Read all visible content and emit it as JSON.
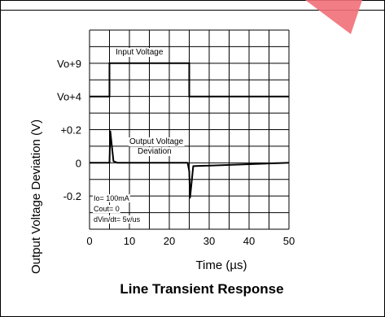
{
  "chart_data": {
    "type": "line",
    "title": "Line Transient Response",
    "xlabel": "Time (µs)",
    "ylabel": "Output Voltage Deviation (V)",
    "xlim": [
      0,
      50
    ],
    "x_ticks": [
      "0",
      "10",
      "20",
      "30",
      "40",
      "50"
    ],
    "y_tick_labels": [
      "Vo+9",
      "Vo+4",
      "+0.2",
      "0",
      "-0.2"
    ],
    "grid": true,
    "series": [
      {
        "name": "Input Voltage",
        "x": [
          0,
          5,
          5,
          25,
          25,
          50
        ],
        "y": [
          "Vo+4",
          "Vo+4",
          "Vo+9",
          "Vo+9",
          "Vo+4",
          "Vo+4"
        ]
      },
      {
        "name": "Output Voltage Deviation",
        "x": [
          0,
          5,
          5.2,
          6,
          7,
          24.6,
          25,
          25.2,
          26,
          50
        ],
        "y": [
          0,
          0,
          0.19,
          0.01,
          0,
          0,
          -0.05,
          -0.21,
          -0.02,
          0
        ]
      }
    ],
    "annotations": {
      "input_label": "Input Voltage",
      "output_label_line1": "Output Voltage",
      "output_label_line2": "Deviation",
      "conditions": [
        "Io= 100mA",
        "Cout= 0",
        "dVin/dt= 5v/us"
      ]
    },
    "colors": {
      "line": "#000000",
      "grid": "#000000",
      "corner_mark": "#f26f78"
    }
  }
}
